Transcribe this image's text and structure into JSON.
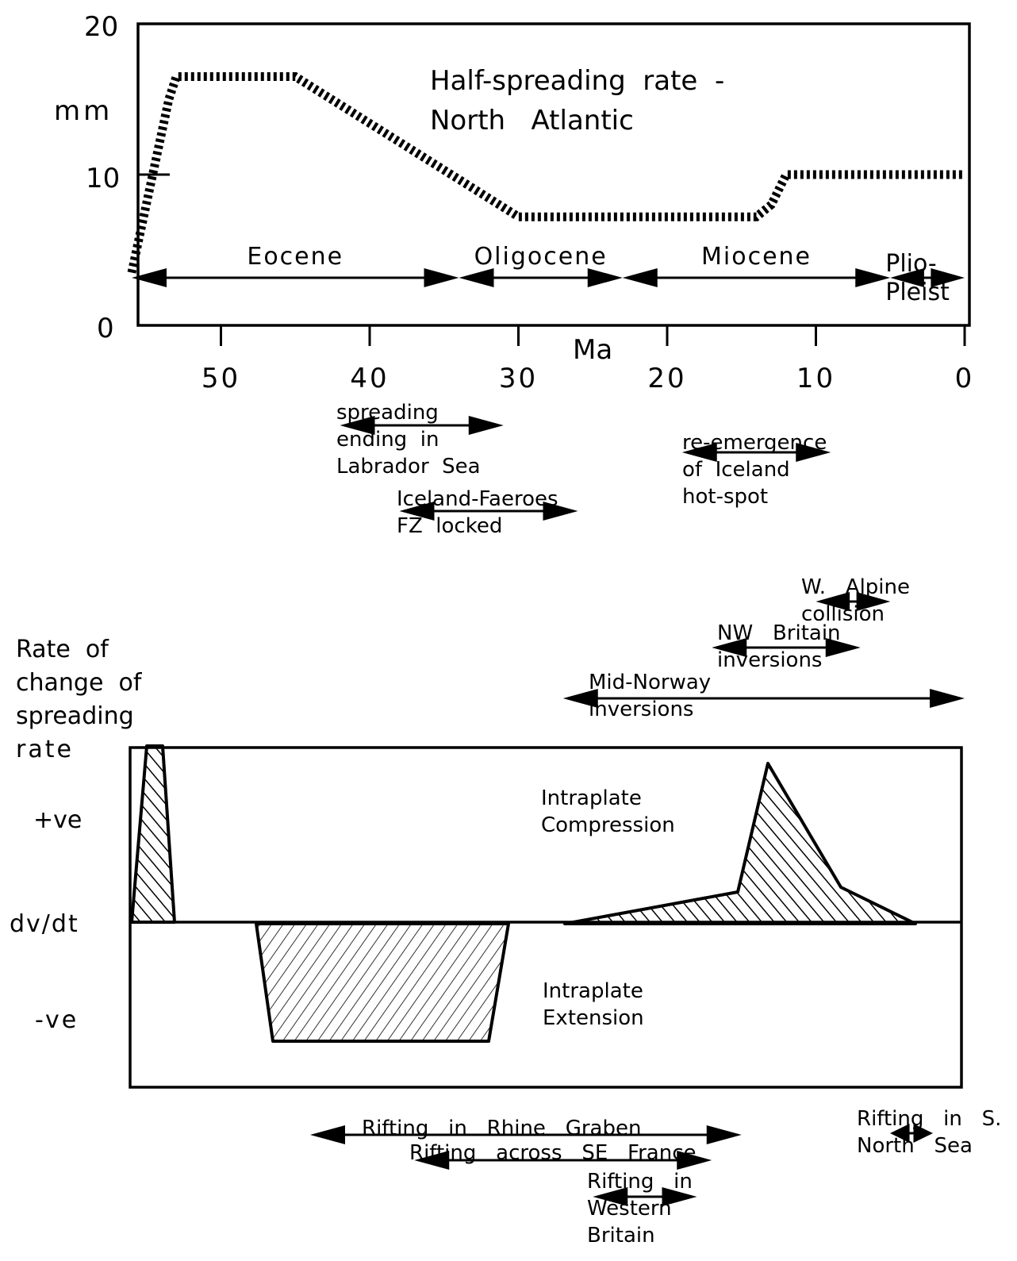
{
  "chart_data": [
    {
      "type": "line",
      "title_lines": [
        "Half-spreading  rate  -",
        "North   Atlantic"
      ],
      "ylabel": "mm",
      "xlabel": "Ma",
      "ylim": [
        0,
        20
      ],
      "xlim": [
        56,
        0
      ],
      "yticks": [
        "20",
        "10",
        "0"
      ],
      "xticks": [
        "50",
        "40",
        "30",
        "20",
        "10",
        "0"
      ],
      "series": [
        {
          "x": [
            56,
            53.5,
            53,
            45,
            30,
            14,
            13,
            12,
            0
          ],
          "y": [
            3.5,
            15,
            16.5,
            16.5,
            7.2,
            7.2,
            8,
            10,
            10
          ]
        }
      ],
      "epochs": [
        {
          "label": "Eocene",
          "from": 56,
          "to": 34
        },
        {
          "label": "Oligocene",
          "from": 34,
          "to": 23
        },
        {
          "label": "Miocene",
          "from": 23,
          "to": 5
        },
        {
          "label_lines": [
            "Plio-",
            "Pleist"
          ],
          "from": 5,
          "to": 0
        }
      ],
      "annotations": [
        {
          "lines": [
            "spreading",
            "ending  in",
            "Labrador  Sea"
          ],
          "from": 42,
          "to": 31
        },
        {
          "lines": [
            "Iceland-Faeroes",
            "FZ  locked"
          ],
          "from": 38,
          "to": 26
        },
        {
          "lines": [
            "re-emergence",
            "of  Iceland",
            "hot-spot"
          ],
          "from": 19,
          "to": 9
        }
      ]
    },
    {
      "type": "area",
      "ylabel_lines": [
        "Rate  of",
        "change  of",
        "spreading",
        "rate"
      ],
      "yticks": [
        "+ve",
        "dv/dt",
        "-ve"
      ],
      "zones": [
        "Intraplate",
        "Compression",
        "Intraplate",
        "Extension"
      ],
      "regions": [
        {
          "sign": "positive",
          "x": [
            56,
            55,
            54,
            53
          ]
        },
        {
          "sign": "negative",
          "x": [
            48,
            47,
            34,
            33
          ]
        },
        {
          "sign": "positive",
          "x": [
            23,
            20,
            15,
            13,
            8,
            3
          ]
        }
      ],
      "annotations_above": [
        {
          "lines": [
            "W.   Alpine",
            "collision"
          ],
          "from": 10,
          "to": 5
        },
        {
          "lines": [
            "NW   Britain",
            "inversions"
          ],
          "from": 17,
          "to": 7
        },
        {
          "lines": [
            "Mid-Norway",
            "inversions"
          ],
          "from": 27,
          "to": 0
        }
      ],
      "annotations_below": [
        {
          "lines": [
            "Rifting   in   Rhine   Graben"
          ],
          "from": 44,
          "to": 15
        },
        {
          "lines": [
            "Rifting   across   SE   France"
          ],
          "from": 37,
          "to": 17
        },
        {
          "lines": [
            "Rifting   in",
            "Western",
            "Britain"
          ],
          "from": 25,
          "to": 18
        },
        {
          "lines": [
            "Rifting   in   S.",
            "North   Sea"
          ],
          "from": 5,
          "to": 0
        }
      ]
    }
  ]
}
